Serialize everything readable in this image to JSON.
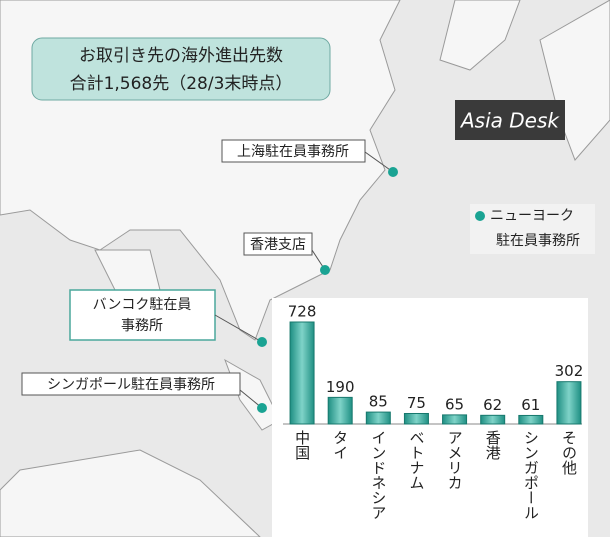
{
  "title": "お取引き先の海外進出先数",
  "subtitle": "合計1,568先（28/3末時点）",
  "logo": "Asia Desk",
  "offices": [
    {
      "lines": [
        "上海駐在員事務所"
      ]
    },
    {
      "lines": [
        "香港支店"
      ]
    },
    {
      "lines": [
        "ニューヨーク",
        "駐在員事務所"
      ]
    },
    {
      "lines": [
        "バンコク駐在員",
        "事務所"
      ]
    },
    {
      "lines": [
        "シンガポール駐在員事務所"
      ]
    }
  ],
  "chart_data": {
    "type": "bar",
    "categories": [
      "中国",
      "タイ",
      "インドネシア",
      "ベトナム",
      "アメリカ",
      "香港",
      "シンガポール",
      "その他"
    ],
    "values": [
      728,
      190,
      85,
      75,
      65,
      62,
      61,
      302
    ],
    "color": "#2aa89a"
  }
}
